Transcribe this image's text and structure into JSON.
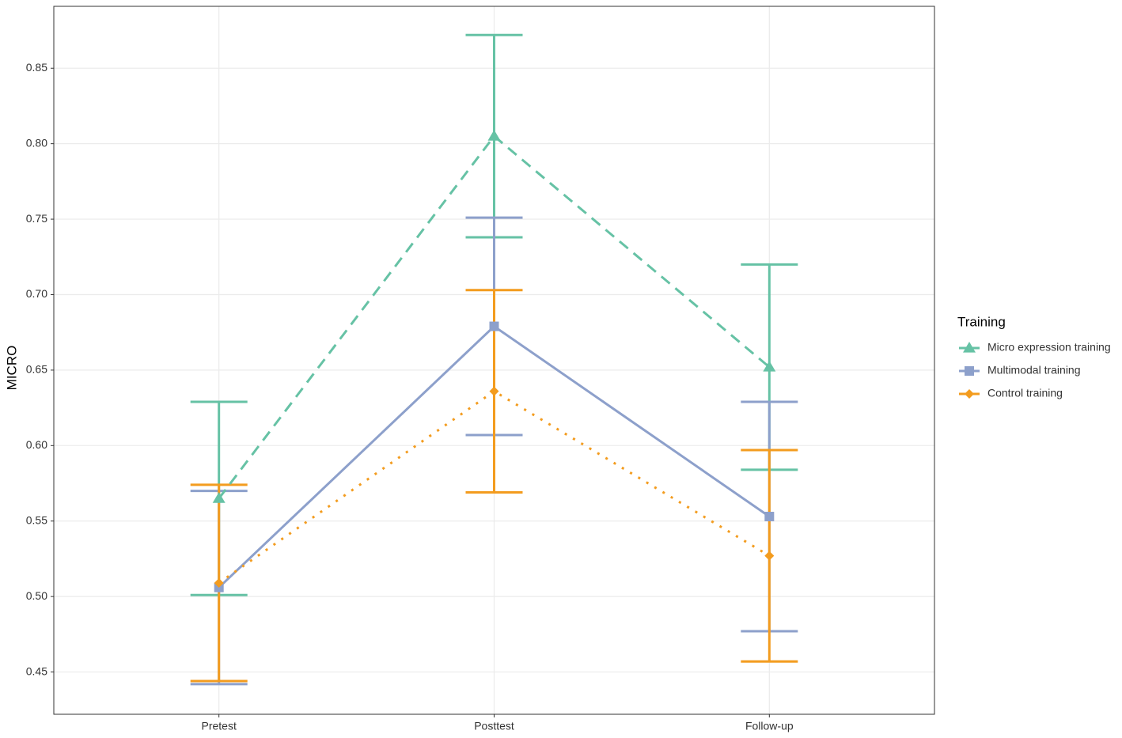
{
  "chart_data": {
    "type": "line",
    "y_label": "MICRO",
    "categories": [
      "Pretest",
      "Posttest",
      "Follow-up"
    ],
    "series": [
      {
        "name": "Micro expression training",
        "color": "#66c2a5",
        "dash": "dashed",
        "marker": "triangle",
        "values": [
          0.565,
          0.805,
          0.652
        ],
        "errors": [
          0.064,
          0.067,
          0.068
        ]
      },
      {
        "name": "Multimodal training",
        "color": "#8da0cb",
        "dash": "solid",
        "marker": "square",
        "values": [
          0.506,
          0.679,
          0.553
        ],
        "errors": [
          0.064,
          0.072,
          0.076
        ]
      },
      {
        "name": "Control training",
        "color": "#f39c1f",
        "dash": "dotted",
        "marker": "diamond",
        "values": [
          0.509,
          0.636,
          0.527
        ],
        "errors": [
          0.065,
          0.067,
          0.07
        ]
      }
    ],
    "ylim": [
      0.422,
      0.891
    ],
    "yticks": [
      0.45,
      {
        "value": 0.5,
        "label": "0.50"
      },
      0.55,
      {
        "value": 0.6,
        "label": "0.60"
      },
      0.65,
      {
        "value": 0.7,
        "label": "0.70"
      },
      0.75,
      {
        "value": 0.8,
        "label": "0.80"
      },
      0.85
    ],
    "grid": true,
    "legend_title": "Training",
    "legend_position": "right"
  }
}
